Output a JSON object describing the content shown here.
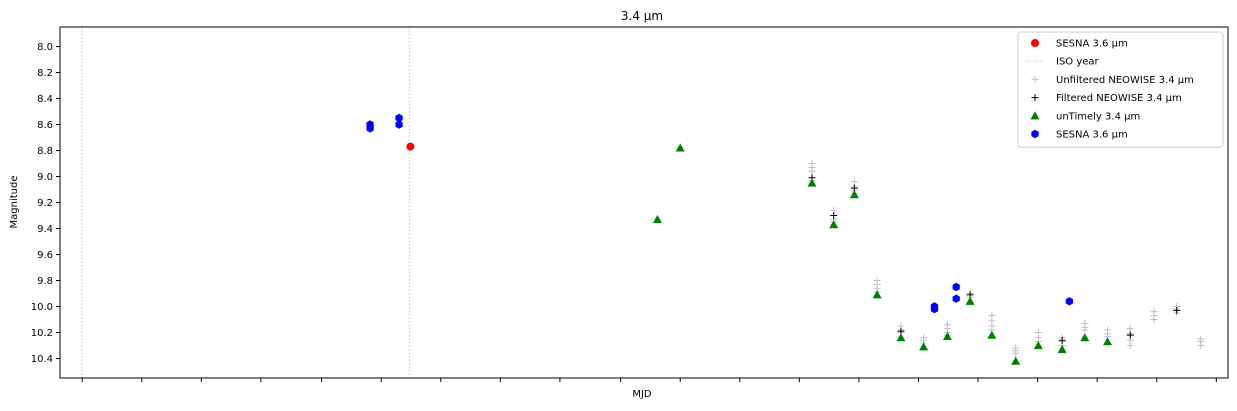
{
  "chart_data": {
    "type": "scatter",
    "title": "3.4 μm",
    "xlabel": "MJD",
    "ylabel": "Magnitude",
    "xlim": [
      0,
      1000
    ],
    "ylim": [
      10.55,
      7.85
    ],
    "y_inverted": true,
    "yticks": [
      "8.0",
      "8.2",
      "8.4",
      "8.6",
      "8.8",
      "9.0",
      "9.2",
      "9.4",
      "9.6",
      "9.8",
      "10.0",
      "10.2",
      "10.4"
    ],
    "ytick_values": [
      8.0,
      8.2,
      8.4,
      8.6,
      8.8,
      9.0,
      9.2,
      9.4,
      9.6,
      9.8,
      10.0,
      10.2,
      10.4
    ],
    "xtick_positions": [
      19,
      70,
      121,
      172,
      224,
      275,
      326,
      377,
      428,
      480,
      531,
      582,
      633,
      684,
      735,
      786,
      837,
      888,
      939,
      990
    ],
    "xticks_labeled": false,
    "iso_year_lines": [
      18.8,
      299.1
    ],
    "legend": {
      "position": "top-right",
      "entries": [
        {
          "label": "SESNA 3.6 μm",
          "marker": "circle",
          "color": "#ff0000"
        },
        {
          "label": "ISO year",
          "marker": "dotted-line",
          "color": "#c8c8c8"
        },
        {
          "label": "Unfiltered NEOWISE 3.4 μm",
          "marker": "plus",
          "color": "#c0c0c0"
        },
        {
          "label": "Filtered NEOWISE 3.4 μm",
          "marker": "plus",
          "color": "#000000"
        },
        {
          "label": "unTimely 3.4 μm",
          "marker": "triangle",
          "color": "#008000"
        },
        {
          "label": "SESNA 3.6 μm",
          "marker": "hexagon",
          "color": "#0000ff"
        }
      ]
    },
    "series": [
      {
        "name": "SESNA 3.6 μm (red)",
        "marker": "circle",
        "color": "#ff0000",
        "points": [
          {
            "x": 300.0,
            "y": 8.77
          }
        ]
      },
      {
        "name": "Unfiltered NEOWISE 3.4 μm",
        "marker": "plus",
        "color": "#c0c0c0",
        "points": [
          {
            "x": 643.8,
            "y": 8.9
          },
          {
            "x": 643.8,
            "y": 8.93
          },
          {
            "x": 643.8,
            "y": 8.96
          },
          {
            "x": 643.8,
            "y": 9.03
          },
          {
            "x": 662.4,
            "y": 9.26
          },
          {
            "x": 662.4,
            "y": 9.3
          },
          {
            "x": 662.4,
            "y": 9.33
          },
          {
            "x": 662.4,
            "y": 9.35
          },
          {
            "x": 680.1,
            "y": 9.04
          },
          {
            "x": 680.1,
            "y": 9.08
          },
          {
            "x": 680.1,
            "y": 9.11
          },
          {
            "x": 680.1,
            "y": 9.13
          },
          {
            "x": 699.6,
            "y": 9.8
          },
          {
            "x": 699.6,
            "y": 9.83
          },
          {
            "x": 699.6,
            "y": 9.86
          },
          {
            "x": 699.6,
            "y": 9.89
          },
          {
            "x": 720.0,
            "y": 10.15
          },
          {
            "x": 720.0,
            "y": 10.18
          },
          {
            "x": 720.0,
            "y": 10.2
          },
          {
            "x": 739.4,
            "y": 10.24
          },
          {
            "x": 739.4,
            "y": 10.26
          },
          {
            "x": 739.4,
            "y": 10.28
          },
          {
            "x": 759.8,
            "y": 10.14
          },
          {
            "x": 759.8,
            "y": 10.17
          },
          {
            "x": 759.8,
            "y": 10.2
          },
          {
            "x": 759.8,
            "y": 10.22
          },
          {
            "x": 779.2,
            "y": 9.9
          },
          {
            "x": 779.2,
            "y": 9.93
          },
          {
            "x": 797.8,
            "y": 10.07
          },
          {
            "x": 797.8,
            "y": 10.11
          },
          {
            "x": 797.8,
            "y": 10.15
          },
          {
            "x": 797.8,
            "y": 10.18
          },
          {
            "x": 818.2,
            "y": 10.32
          },
          {
            "x": 818.2,
            "y": 10.34
          },
          {
            "x": 818.2,
            "y": 10.36
          },
          {
            "x": 837.6,
            "y": 10.2
          },
          {
            "x": 837.6,
            "y": 10.24
          },
          {
            "x": 837.6,
            "y": 10.27
          },
          {
            "x": 858.0,
            "y": 10.24
          },
          {
            "x": 858.0,
            "y": 10.27
          },
          {
            "x": 858.0,
            "y": 10.3
          },
          {
            "x": 877.4,
            "y": 10.13
          },
          {
            "x": 877.4,
            "y": 10.16
          },
          {
            "x": 877.4,
            "y": 10.18
          },
          {
            "x": 896.9,
            "y": 10.18
          },
          {
            "x": 896.9,
            "y": 10.21
          },
          {
            "x": 896.9,
            "y": 10.23
          },
          {
            "x": 916.3,
            "y": 10.17
          },
          {
            "x": 916.3,
            "y": 10.21
          },
          {
            "x": 916.3,
            "y": 10.26
          },
          {
            "x": 916.3,
            "y": 10.3
          },
          {
            "x": 936.7,
            "y": 10.04
          },
          {
            "x": 936.7,
            "y": 10.07
          },
          {
            "x": 936.7,
            "y": 10.1
          },
          {
            "x": 956.1,
            "y": 10.0
          },
          {
            "x": 956.1,
            "y": 10.02
          },
          {
            "x": 956.1,
            "y": 10.05
          },
          {
            "x": 976.6,
            "y": 10.25
          },
          {
            "x": 976.6,
            "y": 10.27
          },
          {
            "x": 976.6,
            "y": 10.3
          }
        ]
      },
      {
        "name": "Filtered NEOWISE 3.4 μm",
        "marker": "plus",
        "color": "#000000",
        "points": [
          {
            "x": 643.8,
            "y": 9.01
          },
          {
            "x": 662.4,
            "y": 9.3
          },
          {
            "x": 680.1,
            "y": 9.09
          },
          {
            "x": 720.0,
            "y": 10.19
          },
          {
            "x": 779.2,
            "y": 9.91
          },
          {
            "x": 858.0,
            "y": 10.26
          },
          {
            "x": 916.3,
            "y": 10.22
          },
          {
            "x": 956.1,
            "y": 10.03
          }
        ]
      },
      {
        "name": "unTimely 3.4 μm",
        "marker": "triangle",
        "color": "#008000",
        "points": [
          {
            "x": 511.5,
            "y": 9.33
          },
          {
            "x": 531.0,
            "y": 8.78
          },
          {
            "x": 643.8,
            "y": 9.05
          },
          {
            "x": 662.4,
            "y": 9.37
          },
          {
            "x": 680.1,
            "y": 9.14
          },
          {
            "x": 699.6,
            "y": 9.91
          },
          {
            "x": 720.0,
            "y": 10.24
          },
          {
            "x": 739.4,
            "y": 10.31
          },
          {
            "x": 759.8,
            "y": 10.23
          },
          {
            "x": 779.2,
            "y": 9.96
          },
          {
            "x": 797.8,
            "y": 10.22
          },
          {
            "x": 818.2,
            "y": 10.42
          },
          {
            "x": 837.6,
            "y": 10.3
          },
          {
            "x": 858.0,
            "y": 10.33
          },
          {
            "x": 877.4,
            "y": 10.24
          },
          {
            "x": 896.9,
            "y": 10.27
          }
        ]
      },
      {
        "name": "SESNA 3.6 μm (blue)",
        "marker": "hexagon",
        "color": "#0000ff",
        "points": [
          {
            "x": 265.5,
            "y": 8.6
          },
          {
            "x": 265.5,
            "y": 8.63
          },
          {
            "x": 290.3,
            "y": 8.55
          },
          {
            "x": 290.3,
            "y": 8.6
          },
          {
            "x": 748.7,
            "y": 10.0
          },
          {
            "x": 748.7,
            "y": 10.02
          },
          {
            "x": 767.3,
            "y": 9.85
          },
          {
            "x": 767.3,
            "y": 9.94
          },
          {
            "x": 864.2,
            "y": 9.96
          }
        ]
      }
    ]
  }
}
